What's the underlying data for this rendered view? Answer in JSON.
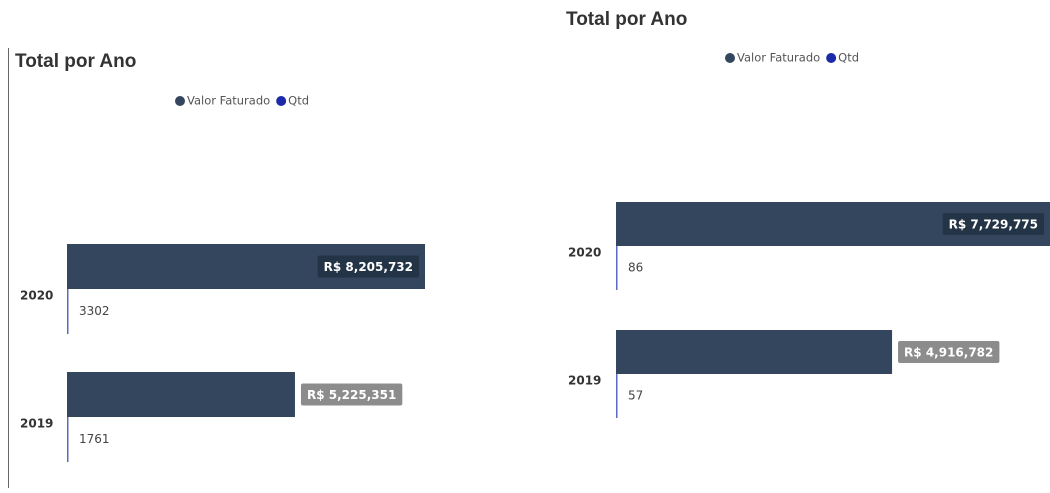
{
  "chart_data": [
    {
      "type": "bar",
      "orientation": "horizontal",
      "title": "Total por Ano",
      "categories": [
        "2020",
        "2019"
      ],
      "series": [
        {
          "name": "Valor Faturado",
          "color": "#34465e",
          "values": [
            8205732,
            5225351
          ],
          "value_labels": [
            "R$ 8,205,732",
            "R$ 5,225,351"
          ]
        },
        {
          "name": "Qtd",
          "color": "#1a2aa8",
          "values": [
            3302,
            1761
          ]
        }
      ]
    },
    {
      "type": "bar",
      "orientation": "horizontal",
      "title": "Total por Ano",
      "categories": [
        "2020",
        "2019"
      ],
      "series": [
        {
          "name": "Valor Faturado",
          "color": "#34465e",
          "values": [
            7729775,
            4916782
          ],
          "value_labels": [
            "R$ 7,729,775",
            "R$ 4,916,782"
          ]
        },
        {
          "name": "Qtd",
          "color": "#1a2aa8",
          "values": [
            86,
            57
          ]
        }
      ]
    }
  ]
}
